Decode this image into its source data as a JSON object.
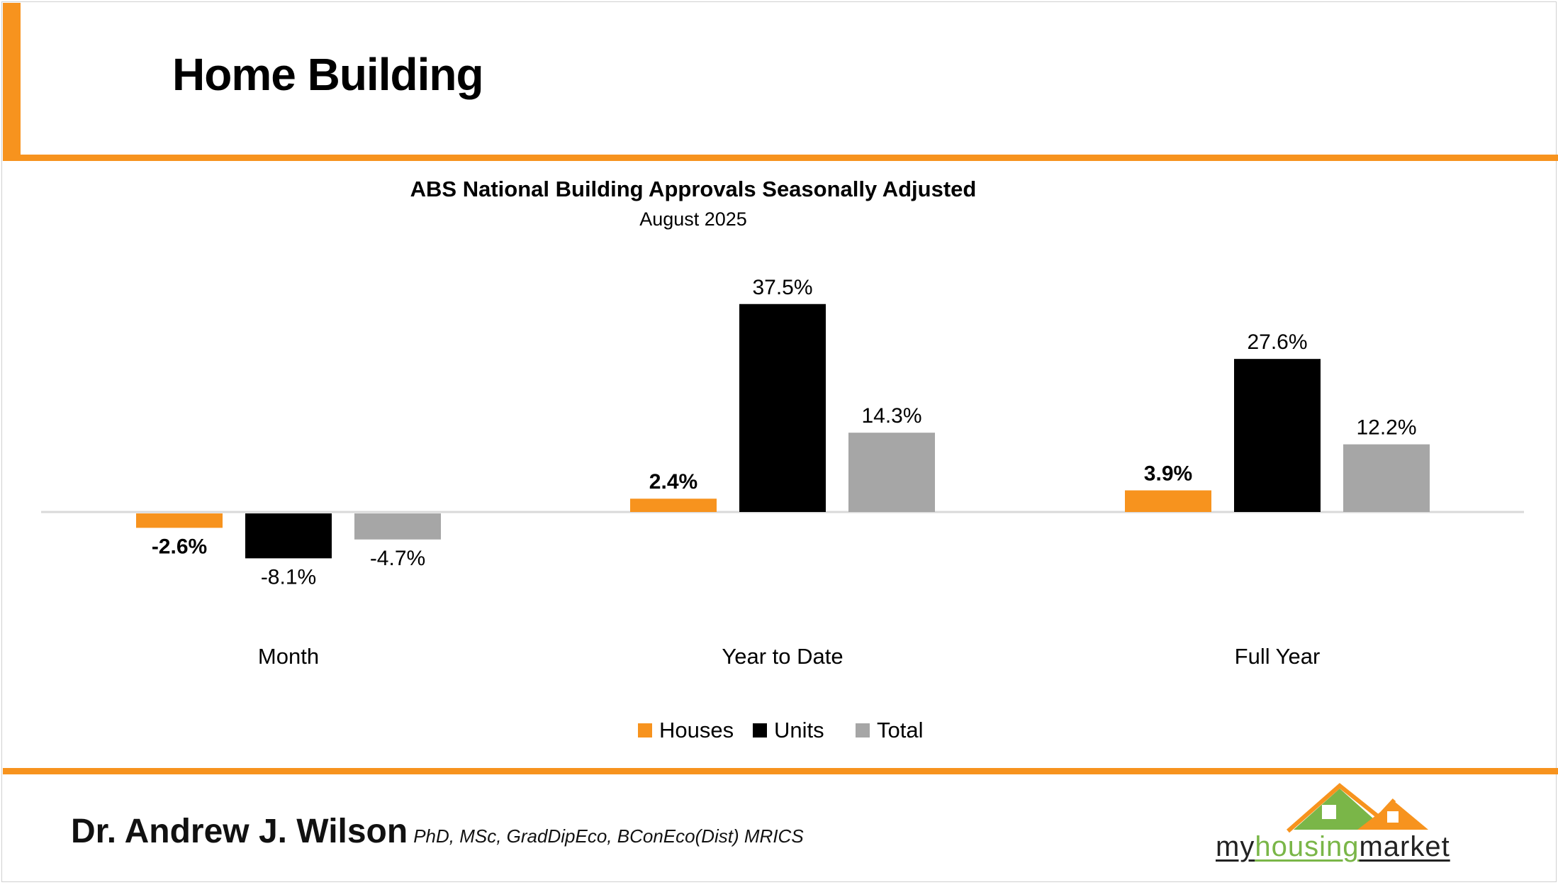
{
  "header": {
    "title": "Home Building"
  },
  "chart_data": {
    "type": "bar",
    "title": "ABS National Building Approvals Seasonally Adjusted",
    "subtitle": "August 2025",
    "categories": [
      "Month",
      "Year to Date",
      "Full Year"
    ],
    "series": [
      {
        "name": "Houses",
        "color": "#f7931e",
        "values": [
          -2.6,
          2.4,
          3.9
        ],
        "labels": [
          "-2.6%",
          "2.4%",
          "3.9%"
        ],
        "bold_labels": true
      },
      {
        "name": "Units",
        "color": "#000000",
        "values": [
          -8.1,
          37.5,
          27.6
        ],
        "labels": [
          "-8.1%",
          "37.5%",
          "27.6%"
        ],
        "bold_labels": false
      },
      {
        "name": "Total",
        "color": "#a6a6a6",
        "values": [
          -4.7,
          14.3,
          12.2
        ],
        "labels": [
          "-4.7%",
          "14.3%",
          "12.2%"
        ],
        "bold_labels": false
      }
    ],
    "xlabel": "",
    "ylabel": "",
    "ylim": [
      -25,
      37.5
    ],
    "grid": false,
    "legend": "bottom-center"
  },
  "footer": {
    "name": "Dr. Andrew J. Wilson",
    "credentials": "PhD, MSc, GradDipEco, BConEco(Dist) MRICS"
  },
  "logo": {
    "part1": "my",
    "part2": "housing",
    "part3": "market"
  }
}
